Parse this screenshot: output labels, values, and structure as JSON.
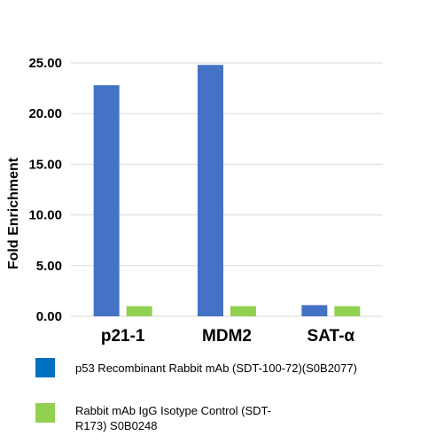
{
  "chart_data": {
    "type": "bar",
    "title": "",
    "xlabel": "",
    "ylabel": "Fold Enrichment",
    "categories": [
      "p21-1",
      "MDM2",
      "SAT-α"
    ],
    "series": [
      {
        "name": "p53 Recombinant Rabbit mAb (SDT-100-72)(S0B2077)",
        "color": "#4472c4",
        "legend_color": "#0070c0",
        "values": [
          22.8,
          24.8,
          1.1
        ]
      },
      {
        "name": "Rabbit mAb IgG Isotype Control (SDT-R173) S0B0248",
        "color": "#92d050",
        "legend_color": "#92d050",
        "values": [
          1.0,
          1.0,
          1.0
        ]
      }
    ],
    "ylim": [
      0,
      25
    ],
    "yticks": [
      "0.00",
      "5.00",
      "10.00",
      "15.00",
      "20.00",
      "25.00"
    ],
    "grid": true,
    "legend_position": "bottom"
  }
}
